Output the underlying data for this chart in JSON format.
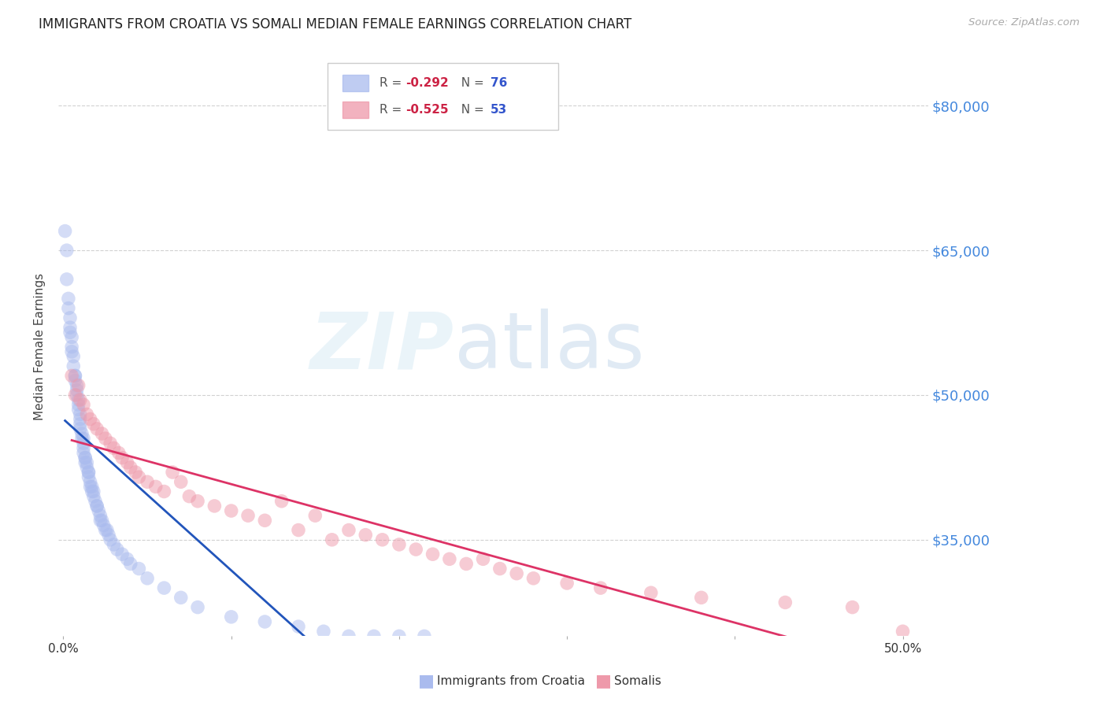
{
  "title": "IMMIGRANTS FROM CROATIA VS SOMALI MEDIAN FEMALE EARNINGS CORRELATION CHART",
  "source": "Source: ZipAtlas.com",
  "ylabel": "Median Female Earnings",
  "xlim": [
    -0.003,
    0.515
  ],
  "ylim": [
    25000,
    85000
  ],
  "yticks": [
    35000,
    50000,
    65000,
    80000
  ],
  "ytick_labels": [
    "$35,000",
    "$50,000",
    "$65,000",
    "$80,000"
  ],
  "xtick_positions": [
    0.0,
    0.1,
    0.2,
    0.3,
    0.4,
    0.5
  ],
  "xtick_labels_ends": [
    "0.0%",
    "50.0%"
  ],
  "grid_color": "#cccccc",
  "background_color": "#ffffff",
  "title_fontsize": 12,
  "croatia": {
    "name": "Immigrants from Croatia",
    "R": -0.292,
    "N": 76,
    "color_scatter": "#aabbee",
    "color_line": "#2255bb",
    "alpha_scatter": 0.5,
    "x": [
      0.001,
      0.002,
      0.002,
      0.003,
      0.003,
      0.004,
      0.004,
      0.004,
      0.005,
      0.005,
      0.005,
      0.006,
      0.006,
      0.007,
      0.007,
      0.007,
      0.008,
      0.008,
      0.008,
      0.009,
      0.009,
      0.009,
      0.01,
      0.01,
      0.01,
      0.01,
      0.011,
      0.011,
      0.012,
      0.012,
      0.012,
      0.012,
      0.013,
      0.013,
      0.013,
      0.014,
      0.014,
      0.015,
      0.015,
      0.015,
      0.016,
      0.016,
      0.017,
      0.017,
      0.018,
      0.018,
      0.019,
      0.02,
      0.02,
      0.021,
      0.022,
      0.022,
      0.023,
      0.024,
      0.025,
      0.026,
      0.027,
      0.028,
      0.03,
      0.032,
      0.035,
      0.038,
      0.04,
      0.045,
      0.05,
      0.06,
      0.07,
      0.08,
      0.1,
      0.12,
      0.14,
      0.155,
      0.17,
      0.185,
      0.2,
      0.215
    ],
    "y": [
      67000,
      65000,
      62000,
      60000,
      59000,
      58000,
      57000,
      56500,
      56000,
      55000,
      54500,
      54000,
      53000,
      52000,
      52000,
      51500,
      51000,
      50500,
      50000,
      49500,
      49000,
      48500,
      48000,
      47500,
      47000,
      46500,
      46000,
      45500,
      45500,
      45000,
      44500,
      44000,
      43500,
      43500,
      43000,
      43000,
      42500,
      42000,
      42000,
      41500,
      41000,
      40500,
      40500,
      40000,
      40000,
      39500,
      39000,
      38500,
      38500,
      38000,
      37500,
      37000,
      37000,
      36500,
      36000,
      36000,
      35500,
      35000,
      34500,
      34000,
      33500,
      33000,
      32500,
      32000,
      31000,
      30000,
      29000,
      28000,
      27000,
      26500,
      26000,
      25500,
      25000,
      25000,
      25000,
      25000
    ]
  },
  "somali": {
    "name": "Somalis",
    "R": -0.525,
    "N": 53,
    "color_scatter": "#ee99aa",
    "color_line": "#dd3366",
    "alpha_scatter": 0.5,
    "x": [
      0.005,
      0.007,
      0.009,
      0.01,
      0.012,
      0.014,
      0.016,
      0.018,
      0.02,
      0.023,
      0.025,
      0.028,
      0.03,
      0.033,
      0.035,
      0.038,
      0.04,
      0.043,
      0.045,
      0.05,
      0.055,
      0.06,
      0.065,
      0.07,
      0.075,
      0.08,
      0.09,
      0.1,
      0.11,
      0.12,
      0.13,
      0.14,
      0.15,
      0.16,
      0.17,
      0.18,
      0.19,
      0.2,
      0.21,
      0.22,
      0.23,
      0.24,
      0.25,
      0.26,
      0.27,
      0.28,
      0.3,
      0.32,
      0.35,
      0.38,
      0.43,
      0.47,
      0.5
    ],
    "y": [
      52000,
      50000,
      51000,
      49500,
      49000,
      48000,
      47500,
      47000,
      46500,
      46000,
      45500,
      45000,
      44500,
      44000,
      43500,
      43000,
      42500,
      42000,
      41500,
      41000,
      40500,
      40000,
      42000,
      41000,
      39500,
      39000,
      38500,
      38000,
      37500,
      37000,
      39000,
      36000,
      37500,
      35000,
      36000,
      35500,
      35000,
      34500,
      34000,
      33500,
      33000,
      32500,
      33000,
      32000,
      31500,
      31000,
      30500,
      30000,
      29500,
      29000,
      28500,
      28000,
      25500
    ]
  }
}
